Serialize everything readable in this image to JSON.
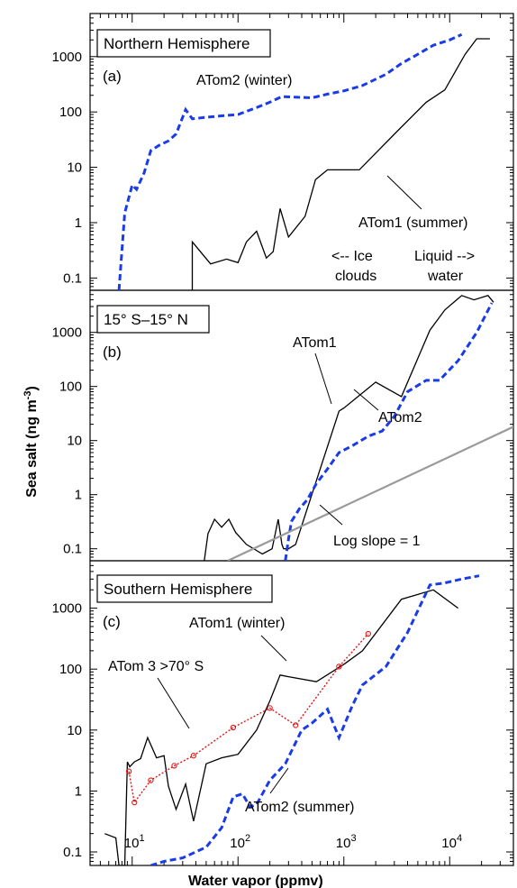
{
  "figure": {
    "xlabel": "Water vapor (ppmv)",
    "ylabel_main": "Sea salt (ng m",
    "ylabel_sup": "-3",
    "ylabel_close": ")",
    "xscale": "log",
    "yscale": "log",
    "xlim": [
      4,
      40000
    ],
    "x_ticks": [
      10,
      100,
      1000,
      10000
    ],
    "x_tick_labels": [
      {
        "base": "10",
        "exp": "1"
      },
      {
        "base": "10",
        "exp": "2"
      },
      {
        "base": "10",
        "exp": "3"
      },
      {
        "base": "10",
        "exp": "4"
      }
    ],
    "y_ticks": [
      0.1,
      1,
      10,
      100,
      1000
    ],
    "y_tick_labels": [
      "0.1",
      "1",
      "10",
      "100",
      "1000"
    ]
  },
  "chart_data": [
    {
      "type": "line",
      "panel_label": "(a)",
      "title": "Northern Hemisphere",
      "ylim": [
        0.06,
        6000
      ],
      "annotations": [
        "ATom2 (winter)",
        "ATom1 (summer)",
        "<-- Ice",
        "clouds",
        "Liquid -->",
        "water"
      ],
      "series": [
        {
          "name": "ATom1 (summer)",
          "color": "#000000",
          "style": "solid",
          "x": [
            37,
            37,
            55,
            78,
            100,
            120,
            150,
            185,
            215,
            250,
            300,
            430,
            540,
            700,
            1400,
            3200,
            6000,
            9000,
            14000,
            18000,
            24000
          ],
          "y": [
            0.06,
            0.45,
            0.18,
            0.22,
            0.19,
            0.45,
            0.7,
            0.23,
            0.3,
            1.8,
            0.55,
            1.3,
            6,
            9,
            9,
            45,
            150,
            250,
            1100,
            2100,
            2100
          ]
        },
        {
          "name": "ATom2 (winter)",
          "color": "#1a3be8",
          "style": "dashed",
          "x": [
            7.5,
            8.5,
            10,
            11,
            13,
            15,
            18,
            22,
            26,
            32,
            37,
            50,
            70,
            100,
            150,
            200,
            260,
            350,
            500,
            700,
            1000,
            1500,
            2500,
            3500,
            5000,
            7000,
            10000,
            13000
          ],
          "y": [
            0.06,
            1.5,
            4.8,
            4,
            8,
            20,
            25,
            30,
            40,
            110,
            75,
            80,
            85,
            90,
            120,
            150,
            190,
            185,
            180,
            210,
            240,
            300,
            480,
            750,
            1100,
            1600,
            2000,
            2500
          ]
        }
      ]
    },
    {
      "type": "line",
      "panel_label": "(b)",
      "title": "15° S–15° N",
      "ylim": [
        0.06,
        6000
      ],
      "annotations": [
        "ATom1",
        "ATom2",
        "Log slope = 1"
      ],
      "series": [
        {
          "name": "ATom1",
          "color": "#000000",
          "style": "solid",
          "x": [
            48,
            52,
            60,
            70,
            82,
            95,
            120,
            170,
            210,
            240,
            260,
            270,
            300,
            350,
            900,
            1000,
            2000,
            3500,
            6500,
            9000,
            13000,
            17000,
            23000,
            26000
          ],
          "y": [
            0.06,
            0.19,
            0.35,
            0.25,
            0.35,
            0.2,
            0.12,
            0.08,
            0.1,
            0.35,
            0.12,
            0.1,
            0.1,
            0.12,
            35,
            40,
            120,
            65,
            1100,
            2600,
            4800,
            4000,
            4800,
            3600
          ]
        },
        {
          "name": "ATom2",
          "color": "#1a3be8",
          "style": "dashed",
          "x": [
            280,
            300,
            320,
            380,
            450,
            550,
            700,
            900,
            1200,
            1700,
            2300,
            3000,
            4000,
            6000,
            8000,
            12000,
            18000,
            25000
          ],
          "y": [
            0.06,
            0.15,
            0.32,
            0.55,
            0.8,
            1.6,
            3,
            6,
            8,
            12,
            15,
            28,
            80,
            130,
            130,
            300,
            1000,
            3500
          ]
        },
        {
          "name": "Log slope = 1",
          "color": "#9a9a9a",
          "style": "solid",
          "x": [
            80,
            40000
          ],
          "y": [
            0.06,
            18
          ]
        }
      ]
    },
    {
      "type": "line",
      "panel_label": "(c)",
      "title": "Southern Hemisphere",
      "ylim": [
        0.06,
        6000
      ],
      "annotations": [
        "ATom1 (winter)",
        "ATom 3 >70° S",
        "ATom2 (summer)"
      ],
      "series": [
        {
          "name": "ATom1 (winter)",
          "color": "#000000",
          "style": "solid",
          "x": [
            5.5,
            7,
            7.5,
            8.5,
            9,
            9.5,
            10.5,
            12,
            14,
            17,
            20,
            22,
            26,
            32,
            38,
            50,
            70,
            100,
            150,
            200,
            250,
            300,
            550,
            1000,
            1500,
            3500,
            7000,
            12000
          ],
          "y": [
            0.2,
            0.17,
            0.06,
            0.06,
            3,
            2.5,
            3,
            3.4,
            7.5,
            3.5,
            3.8,
            1.2,
            0.5,
            1.3,
            0.32,
            2.8,
            3.5,
            4,
            10,
            30,
            80,
            75,
            62,
            120,
            200,
            1400,
            2000,
            1000
          ]
        },
        {
          "name": "ATom2 (summer)",
          "color": "#1a3be8",
          "style": "dashed",
          "x": [
            15,
            20,
            30,
            50,
            70,
            90,
            110,
            130,
            150,
            200,
            280,
            400,
            500,
            700,
            900,
            1200,
            1500,
            2500,
            4000,
            6500,
            9000,
            13000,
            19000
          ],
          "y": [
            0.06,
            0.07,
            0.08,
            0.12,
            0.25,
            0.8,
            0.9,
            0.55,
            0.6,
            1.5,
            2.8,
            10,
            13,
            22,
            7.5,
            25,
            55,
            110,
            400,
            2400,
            2600,
            3000,
            3400
          ]
        },
        {
          "name": "ATom 3 >70° S",
          "color": "#e01515",
          "style": "dotted",
          "x": [
            9.3,
            10.5,
            15,
            25,
            38,
            90,
            200,
            350,
            900,
            1700
          ],
          "y": [
            2.1,
            0.65,
            1.5,
            2.6,
            3.8,
            11,
            23,
            12,
            110,
            380
          ]
        }
      ]
    }
  ]
}
